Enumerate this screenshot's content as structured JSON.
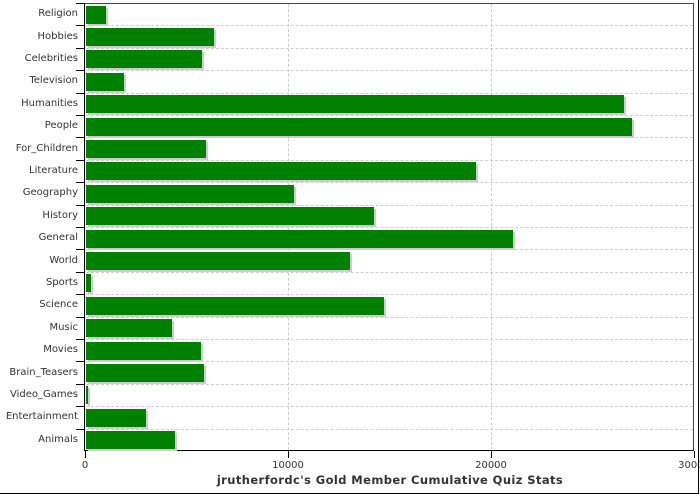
{
  "chart_data": {
    "type": "bar",
    "orientation": "horizontal",
    "title": "jrutherfordc's Gold Member Cumulative Quiz Stats",
    "categories": [
      "Religion",
      "Hobbies",
      "Celebrities",
      "Television",
      "Humanities",
      "People",
      "For_Children",
      "Literature",
      "Geography",
      "History",
      "General",
      "World",
      "Sports",
      "Science",
      "Music",
      "Movies",
      "Brain_Teasers",
      "Video_Games",
      "Entertainment",
      "Animals"
    ],
    "values": [
      1000,
      6300,
      5700,
      1850,
      26500,
      26900,
      5900,
      19200,
      10250,
      14200,
      21050,
      13000,
      250,
      14700,
      4250,
      5650,
      5800,
      100,
      2950,
      4400
    ],
    "xlabel": "",
    "ylabel": "",
    "xlim": [
      0,
      30000
    ],
    "x_ticks": [
      0,
      10000,
      20000,
      30000
    ],
    "x_tick_labels": [
      "0",
      "10000",
      "20000",
      "30000"
    ],
    "grid": "dashed",
    "legend": "none",
    "colors": {
      "bar": "#008000",
      "bar_shadow": "#cccccc",
      "gridline": "#cccccc",
      "axis": "#000000",
      "frame": "#444444",
      "text": "#333333"
    }
  }
}
